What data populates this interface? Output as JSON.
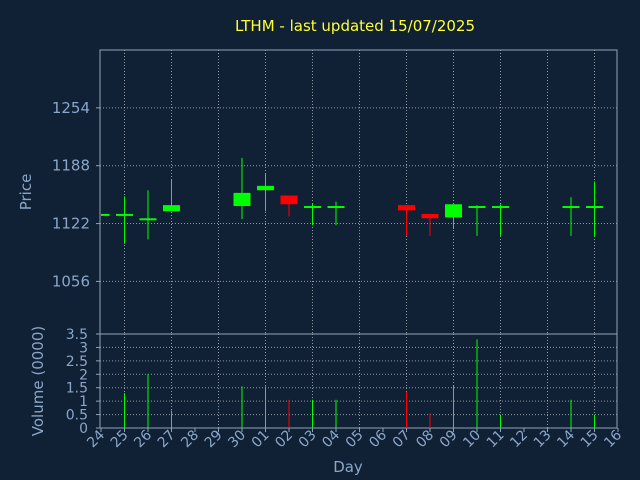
{
  "title": "LTHM - last updated 15/07/2025",
  "chart_data": [
    {
      "type": "candlestick",
      "ylabel": "Price",
      "ylim": [
        996,
        1320
      ],
      "yticks": [
        1056,
        1122,
        1188,
        1254
      ],
      "grid": true,
      "colors": {
        "up": "#00ff00",
        "down": "#ff0000",
        "background": "#102035",
        "title": "#ffff33",
        "axis_text": "#8aa6c8"
      },
      "candles": [
        {
          "day": "24",
          "open": 1133,
          "high": 1133,
          "low": 1133,
          "close": 1133
        },
        {
          "day": "25",
          "open": 1133,
          "high": 1153,
          "low": 1099,
          "close": 1133
        },
        {
          "day": "26",
          "open": 1128,
          "high": 1160,
          "low": 1104,
          "close": 1128
        },
        {
          "day": "27",
          "open": 1136,
          "high": 1172,
          "low": 1136,
          "close": 1143
        },
        {
          "day": "30",
          "open": 1142,
          "high": 1197,
          "low": 1127,
          "close": 1157
        },
        {
          "day": "01",
          "open": 1160,
          "high": 1179,
          "low": 1136,
          "close": 1165
        },
        {
          "day": "02",
          "open": 1154,
          "high": 1154,
          "low": 1130,
          "close": 1144
        },
        {
          "day": "03",
          "open": 1142,
          "high": 1145,
          "low": 1120,
          "close": 1142
        },
        {
          "day": "04",
          "open": 1142,
          "high": 1147,
          "low": 1120,
          "close": 1142
        },
        {
          "day": "07",
          "open": 1143,
          "high": 1143,
          "low": 1108,
          "close": 1137
        },
        {
          "day": "08",
          "open": 1133,
          "high": 1133,
          "low": 1108,
          "close": 1128
        },
        {
          "day": "09",
          "open": 1129,
          "high": 1144,
          "low": 1116,
          "close": 1144
        },
        {
          "day": "10",
          "open": 1142,
          "high": 1143,
          "low": 1108,
          "close": 1142
        },
        {
          "day": "11",
          "open": 1142,
          "high": 1144,
          "low": 1108,
          "close": 1142
        },
        {
          "day": "14",
          "open": 1142,
          "high": 1152,
          "low": 1108,
          "close": 1142
        },
        {
          "day": "15",
          "open": 1142,
          "high": 1170,
          "low": 1107,
          "close": 1142
        }
      ]
    },
    {
      "type": "bar",
      "ylabel": "Volume (0000)",
      "ylim": [
        0,
        3.5
      ],
      "yticks": [
        "0",
        "0.5",
        "1",
        "1.5",
        "2",
        "2.5",
        "3",
        "3.5"
      ],
      "grid": true,
      "xlabel": "Day",
      "categories": [
        "24",
        "25",
        "26",
        "27",
        "28",
        "29",
        "30",
        "01",
        "02",
        "03",
        "04",
        "05",
        "06",
        "07",
        "08",
        "09",
        "10",
        "11",
        "12",
        "13",
        "14",
        "15",
        "16"
      ],
      "bars": [
        {
          "day": "25",
          "value": 1.3,
          "direction": "up"
        },
        {
          "day": "26",
          "value": 2.0,
          "direction": "up"
        },
        {
          "day": "27",
          "value": 0.65,
          "direction": "up"
        },
        {
          "day": "30",
          "value": 1.55,
          "direction": "up"
        },
        {
          "day": "01",
          "value": 1.55,
          "direction": "up"
        },
        {
          "day": "02",
          "value": 1.05,
          "direction": "down"
        },
        {
          "day": "03",
          "value": 1.05,
          "direction": "up"
        },
        {
          "day": "04",
          "value": 1.05,
          "direction": "up"
        },
        {
          "day": "07",
          "value": 1.35,
          "direction": "down"
        },
        {
          "day": "08",
          "value": 0.55,
          "direction": "down"
        },
        {
          "day": "09",
          "value": 1.6,
          "direction": "up"
        },
        {
          "day": "10",
          "value": 3.3,
          "direction": "up"
        },
        {
          "day": "11",
          "value": 0.5,
          "direction": "up"
        },
        {
          "day": "14",
          "value": 1.05,
          "direction": "up"
        },
        {
          "day": "15",
          "value": 0.5,
          "direction": "up"
        }
      ]
    }
  ]
}
